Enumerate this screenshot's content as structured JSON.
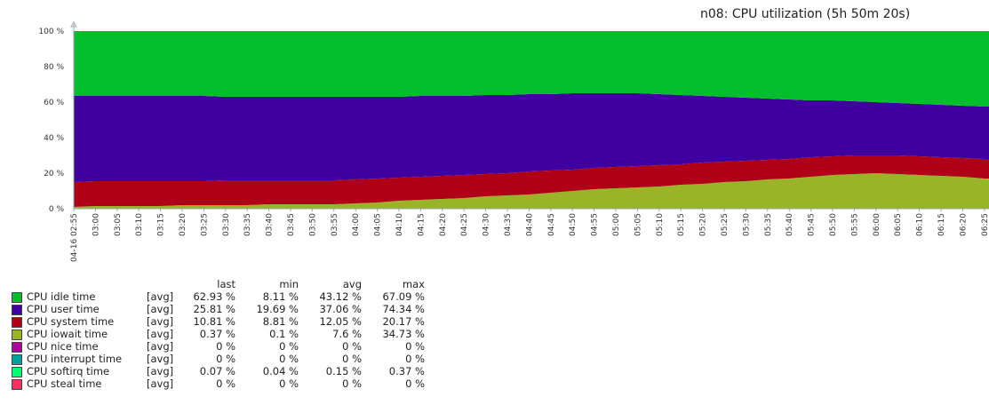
{
  "chart_data": {
    "type": "area",
    "stacked": true,
    "title": "n08: CPU utilization (5h 50m 20s)",
    "xlabel": "",
    "ylabel": "",
    "ylim": [
      0,
      100
    ],
    "yticks": [
      "0 %",
      "20 %",
      "40 %",
      "60 %",
      "80 %",
      "100 %"
    ],
    "x": [
      "04-16 02:55",
      "03:00",
      "03:05",
      "03:10",
      "03:15",
      "03:20",
      "03:25",
      "03:30",
      "03:35",
      "03:40",
      "03:45",
      "03:50",
      "03:55",
      "04:00",
      "04:05",
      "04:10",
      "04:15",
      "04:20",
      "04:25",
      "04:30",
      "04:35",
      "04:40",
      "04:45",
      "04:50",
      "04:55",
      "05:00",
      "05:05",
      "05:10",
      "05:15",
      "05:20",
      "05:25",
      "05:30",
      "05:35",
      "05:40",
      "05:45",
      "05:50",
      "05:55",
      "06:00",
      "06:05",
      "06:10",
      "06:15",
      "06:20",
      "06:25"
    ],
    "highlight_ticks": [
      "04-16 02:55",
      "03:00",
      "04:00",
      "05:00",
      "06:00"
    ],
    "highlight_color": "#e0003c",
    "series": [
      {
        "name": "CPU iowait time",
        "color": "#99b428",
        "values": [
          1,
          1.5,
          1.5,
          1.5,
          1.5,
          2,
          2,
          2,
          2,
          2.5,
          2.5,
          2.5,
          2.5,
          3,
          3.5,
          4.5,
          5,
          5.5,
          6,
          7,
          7.5,
          8,
          9,
          10,
          11,
          11.5,
          12,
          12.5,
          13.5,
          14,
          15,
          15.5,
          16.5,
          17,
          18,
          19,
          19.5,
          20,
          19.5,
          19,
          18.5,
          18,
          17
        ]
      },
      {
        "name": "CPU system time",
        "color": "#b00017",
        "values": [
          14,
          14,
          14,
          14,
          14,
          13.5,
          13.5,
          14,
          14,
          13.5,
          13.5,
          13.5,
          13.5,
          13.5,
          13.5,
          13,
          13,
          13,
          13,
          12.5,
          12.5,
          13,
          12.5,
          12,
          12,
          12,
          12,
          12,
          11.5,
          12,
          11.5,
          11.5,
          11,
          11,
          11,
          10.5,
          10.5,
          10,
          10.5,
          10.5,
          10.5,
          10.5,
          11
        ]
      },
      {
        "name": "CPU user time",
        "color": "#4000a0",
        "values": [
          48.5,
          48,
          48,
          48,
          48,
          48,
          48,
          47,
          47,
          47,
          47,
          47,
          47,
          46.5,
          46,
          45.5,
          45.5,
          45,
          44.5,
          44.5,
          44,
          43.5,
          43,
          43,
          42,
          41.5,
          41,
          40,
          39,
          37.5,
          36.5,
          35.5,
          34.5,
          33.5,
          32,
          31.5,
          30.5,
          30,
          29.5,
          29.5,
          29.5,
          29.5,
          29.5
        ]
      },
      {
        "name": "CPU idle time",
        "color": "#00bf2a",
        "values": [
          36.5,
          36.5,
          36.5,
          36.5,
          36.5,
          36.5,
          36.5,
          37,
          37,
          37,
          37,
          37,
          37,
          37,
          37,
          37,
          36.5,
          36.5,
          36.5,
          36,
          36,
          35.5,
          35.5,
          35,
          35,
          35,
          35,
          35.5,
          36,
          36.5,
          37,
          37.5,
          38,
          38.5,
          39,
          39,
          39.5,
          40,
          40.5,
          41,
          41.5,
          42,
          42.5
        ]
      }
    ]
  },
  "legend": {
    "headers": {
      "last": "last",
      "min": "min",
      "avg": "avg",
      "max": "max"
    },
    "rows": [
      {
        "name": "CPU idle time",
        "func": "[avg]",
        "last": "62.93 %",
        "min": "8.11 %",
        "avg": "43.12 %",
        "max": "67.09 %",
        "color": "#00bf2a"
      },
      {
        "name": "CPU user time",
        "func": "[avg]",
        "last": "25.81 %",
        "min": "19.69 %",
        "avg": "37.06 %",
        "max": "74.34 %",
        "color": "#4000a0"
      },
      {
        "name": "CPU system time",
        "func": "[avg]",
        "last": "10.81 %",
        "min": "8.81 %",
        "avg": "12.05 %",
        "max": "20.17 %",
        "color": "#b00017"
      },
      {
        "name": "CPU iowait time",
        "func": "[avg]",
        "last": "0.37 %",
        "min": "0.1 %",
        "avg": "7.6 %",
        "max": "34.73 %",
        "color": "#99b428"
      },
      {
        "name": "CPU nice time",
        "func": "[avg]",
        "last": "0 %",
        "min": "0 %",
        "avg": "0 %",
        "max": "0 %",
        "color": "#b000a0"
      },
      {
        "name": "CPU interrupt time",
        "func": "[avg]",
        "last": "0 %",
        "min": "0 %",
        "avg": "0 %",
        "max": "0 %",
        "color": "#00a0a0"
      },
      {
        "name": "CPU softirq time",
        "func": "[avg]",
        "last": "0.07 %",
        "min": "0.04 %",
        "avg": "0.15 %",
        "max": "0.37 %",
        "color": "#00ff70"
      },
      {
        "name": "CPU steal time",
        "func": "[avg]",
        "last": "0 %",
        "min": "0 %",
        "avg": "0 %",
        "max": "0 %",
        "color": "#ff3060"
      }
    ]
  }
}
